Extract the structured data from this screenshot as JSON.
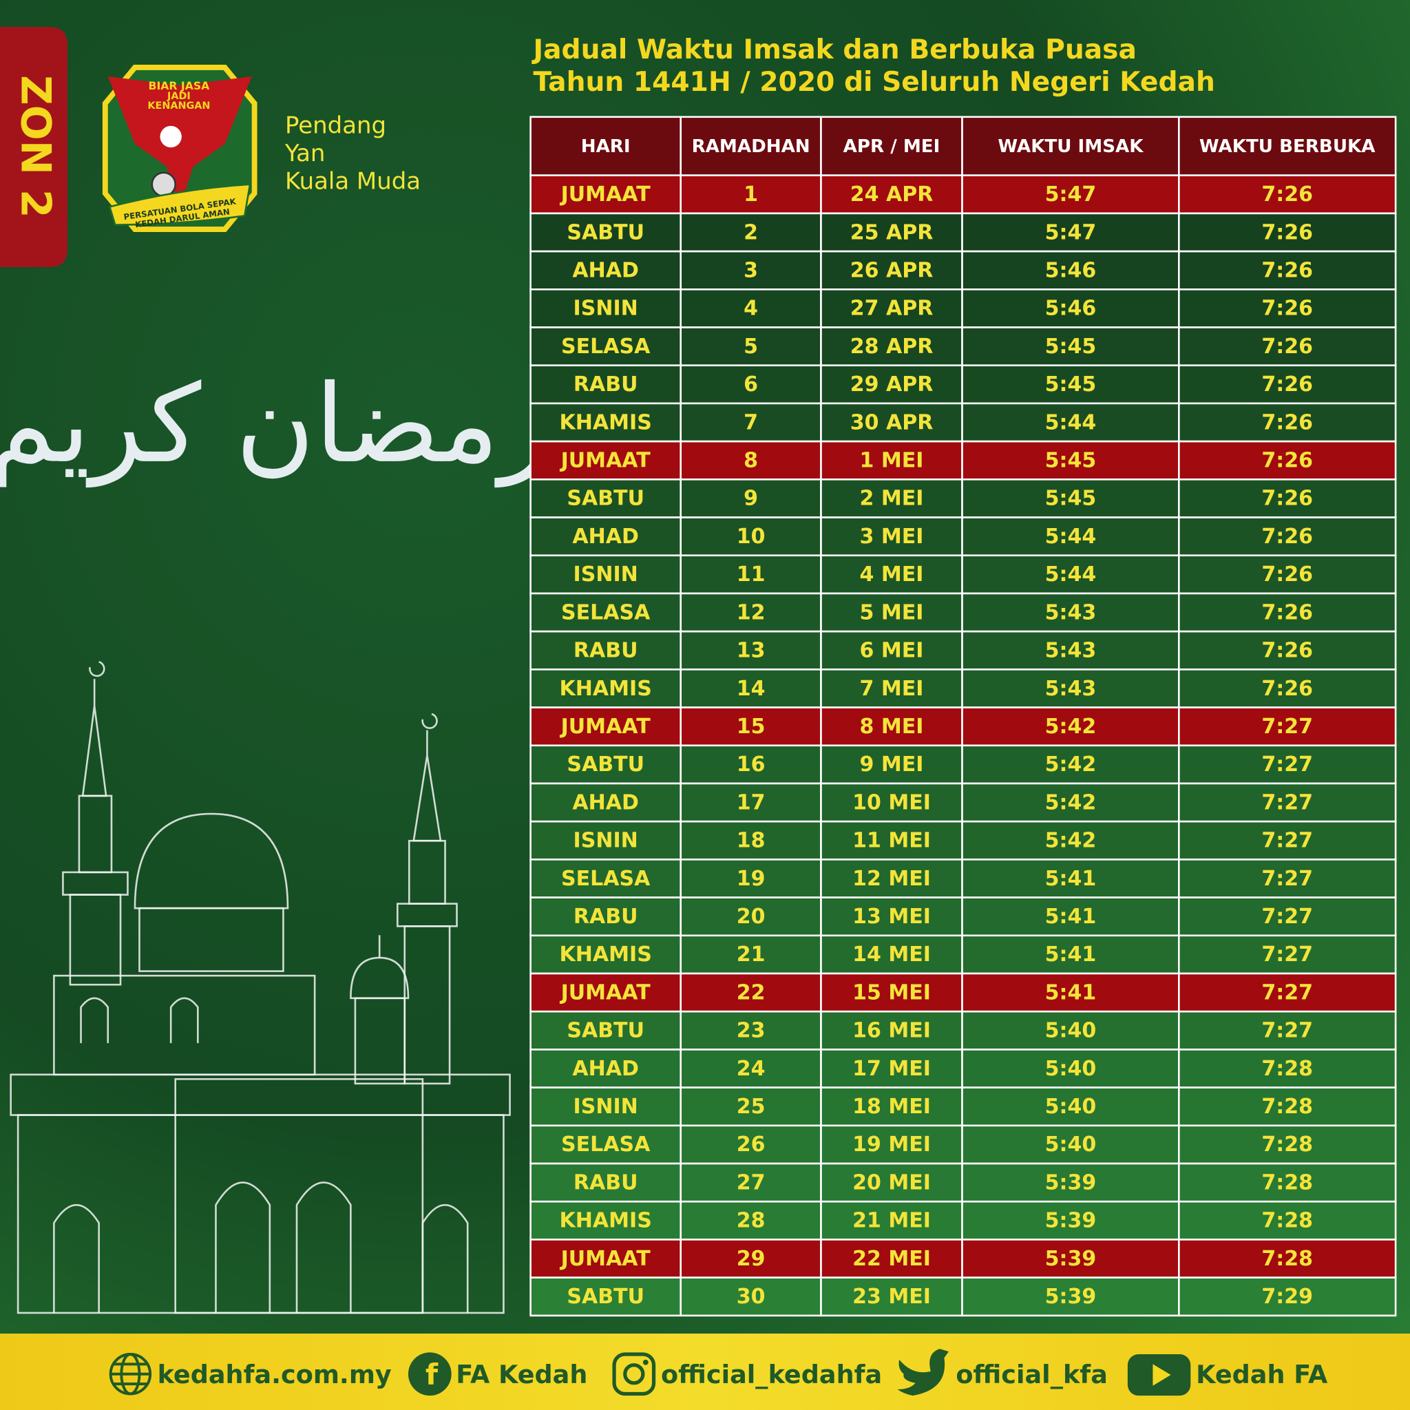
{
  "zone": "ZON 2",
  "logo": {
    "motto": [
      "BIAR JASA",
      "JADI",
      "KENANGAN"
    ],
    "banner": [
      "PERSATUAN BOLA SEPAK",
      "KEDAH DARUL AMAN"
    ]
  },
  "areas": [
    "Pendang",
    "Yan",
    "Kuala Muda"
  ],
  "greeting": "رمضان كريم",
  "header": {
    "title": [
      "Jadual Waktu Imsak dan Berbuka Puasa",
      "Tahun 1441H / 2020 di Seluruh Negeri Kedah"
    ]
  },
  "table": {
    "columns": [
      "HARI",
      "RAMADHAN",
      "APR / MEI",
      "WAKTU IMSAK",
      "WAKTU BERBUKA"
    ],
    "rows": [
      [
        "JUMAAT",
        1,
        "24 APR",
        "5:47",
        "7:26"
      ],
      [
        "SABTU",
        2,
        "25 APR",
        "5:47",
        "7:26"
      ],
      [
        "AHAD",
        3,
        "26 APR",
        "5:46",
        "7:26"
      ],
      [
        "ISNIN",
        4,
        "27 APR",
        "5:46",
        "7:26"
      ],
      [
        "SELASA",
        5,
        "28 APR",
        "5:45",
        "7:26"
      ],
      [
        "RABU",
        6,
        "29 APR",
        "5:45",
        "7:26"
      ],
      [
        "KHAMIS",
        7,
        "30 APR",
        "5:44",
        "7:26"
      ],
      [
        "JUMAAT",
        8,
        "1 MEI",
        "5:45",
        "7:26"
      ],
      [
        "SABTU",
        9,
        "2 MEI",
        "5:45",
        "7:26"
      ],
      [
        "AHAD",
        10,
        "3 MEI",
        "5:44",
        "7:26"
      ],
      [
        "ISNIN",
        11,
        "4 MEI",
        "5:44",
        "7:26"
      ],
      [
        "SELASA",
        12,
        "5 MEI",
        "5:43",
        "7:26"
      ],
      [
        "RABU",
        13,
        "6 MEI",
        "5:43",
        "7:26"
      ],
      [
        "KHAMIS",
        14,
        "7 MEI",
        "5:43",
        "7:26"
      ],
      [
        "JUMAAT",
        15,
        "8 MEI",
        "5:42",
        "7:27"
      ],
      [
        "SABTU",
        16,
        "9 MEI",
        "5:42",
        "7:27"
      ],
      [
        "AHAD",
        17,
        "10 MEI",
        "5:42",
        "7:27"
      ],
      [
        "ISNIN",
        18,
        "11 MEI",
        "5:42",
        "7:27"
      ],
      [
        "SELASA",
        19,
        "12 MEI",
        "5:41",
        "7:27"
      ],
      [
        "RABU",
        20,
        "13 MEI",
        "5:41",
        "7:27"
      ],
      [
        "KHAMIS",
        21,
        "14 MEI",
        "5:41",
        "7:27"
      ],
      [
        "JUMAAT",
        22,
        "15 MEI",
        "5:41",
        "7:27"
      ],
      [
        "SABTU",
        23,
        "16 MEI",
        "5:40",
        "7:27"
      ],
      [
        "AHAD",
        24,
        "17 MEI",
        "5:40",
        "7:28"
      ],
      [
        "ISNIN",
        25,
        "18 MEI",
        "5:40",
        "7:28"
      ],
      [
        "SELASA",
        26,
        "19 MEI",
        "5:40",
        "7:28"
      ],
      [
        "RABU",
        27,
        "20 MEI",
        "5:39",
        "7:28"
      ],
      [
        "KHAMIS",
        28,
        "21 MEI",
        "5:39",
        "7:28"
      ],
      [
        "JUMAAT",
        29,
        "22 MEI",
        "5:39",
        "7:28"
      ],
      [
        "SABTU",
        30,
        "23 MEI",
        "5:39",
        "7:29"
      ]
    ]
  },
  "footer": [
    "kedahfa.com.my",
    "FA Kedah",
    "official_kedahfa",
    "official_kfa",
    "Kedah FA"
  ]
}
